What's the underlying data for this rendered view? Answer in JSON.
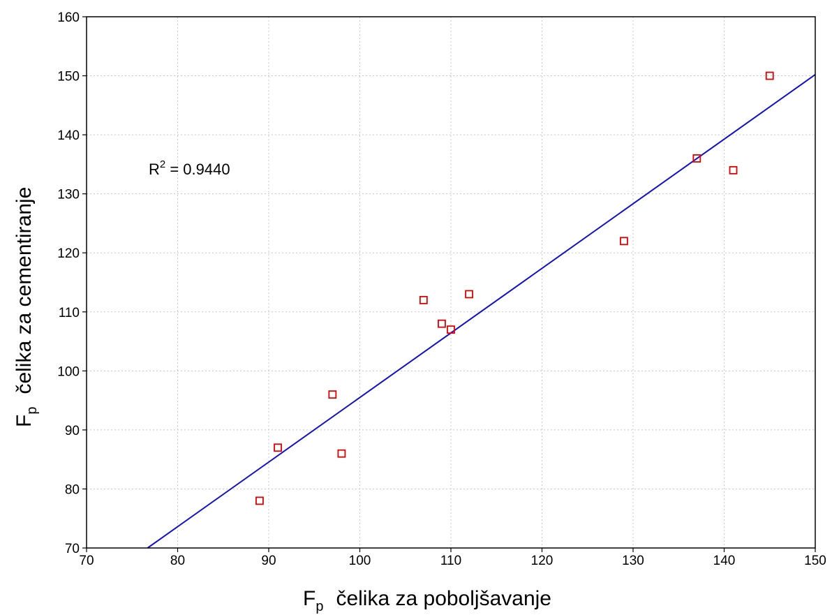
{
  "chart_data": {
    "type": "scatter",
    "xlabel": {
      "main": "F",
      "sub": "p",
      "rest": "čelika za poboljšavanje"
    },
    "ylabel": {
      "main": "F",
      "sub": "p",
      "rest": "čelika za cementiranje"
    },
    "xlim": [
      70,
      150
    ],
    "ylim": [
      70,
      160
    ],
    "xticks": [
      70,
      80,
      90,
      100,
      110,
      120,
      130,
      140,
      150
    ],
    "yticks": [
      70,
      80,
      90,
      100,
      110,
      120,
      130,
      140,
      150,
      160
    ],
    "grid": true,
    "series": [
      {
        "marker": "square",
        "color": "#e00000",
        "points": [
          {
            "x": 89,
            "y": 78
          },
          {
            "x": 91,
            "y": 87
          },
          {
            "x": 97,
            "y": 96
          },
          {
            "x": 98,
            "y": 86
          },
          {
            "x": 107,
            "y": 112
          },
          {
            "x": 109,
            "y": 108
          },
          {
            "x": 110,
            "y": 107
          },
          {
            "x": 112,
            "y": 113
          },
          {
            "x": 129,
            "y": 122
          },
          {
            "x": 137,
            "y": 136
          },
          {
            "x": 141,
            "y": 134
          },
          {
            "x": 145,
            "y": 150
          }
        ]
      }
    ],
    "fit_line": {
      "color": "#1010d0",
      "from": {
        "x": 76.7,
        "y": 70
      },
      "to": {
        "x": 150,
        "y": 150.2
      }
    },
    "annotation": {
      "base": "R",
      "sup": "2",
      "rest": " = 0.9440"
    }
  }
}
